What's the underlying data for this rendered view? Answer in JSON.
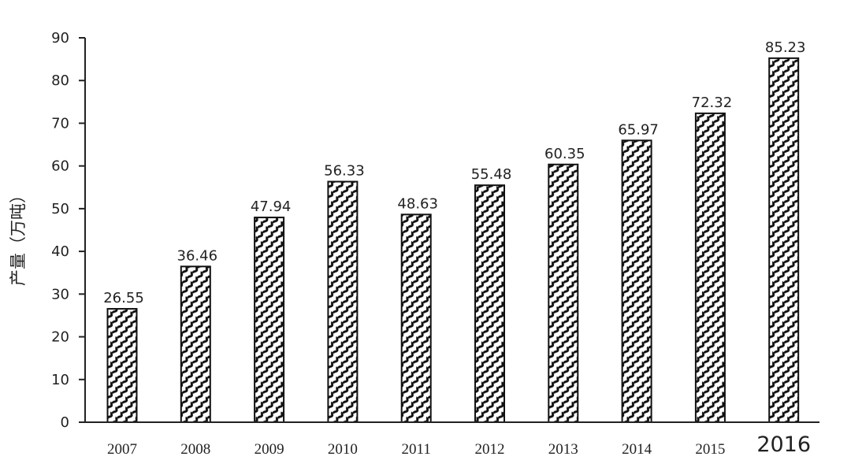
{
  "chart_data": {
    "type": "bar",
    "categories": [
      "2007",
      "2008",
      "2009",
      "2010",
      "2011",
      "2012",
      "2013",
      "2014",
      "2015",
      "2016"
    ],
    "values": [
      26.55,
      36.46,
      47.94,
      56.33,
      48.63,
      55.48,
      60.35,
      65.97,
      72.32,
      85.23
    ],
    "data_labels": [
      "26.55",
      "36.46",
      "47.94",
      "56.33",
      "48.63",
      "55.48",
      "60.35",
      "65.97",
      "72.32",
      "85.23"
    ],
    "ylabel": "产量（万吨）",
    "xlabel": "",
    "ylim": [
      0,
      90
    ],
    "yticks": [
      0,
      10,
      20,
      30,
      40,
      50,
      60,
      70,
      80,
      90
    ],
    "ytick_labels": [
      "0",
      "10",
      "20",
      "30",
      "40",
      "50",
      "60",
      "70",
      "80",
      "90"
    ],
    "grid": false,
    "legend": "none",
    "colors": {
      "bar_pattern_fg": "#111111",
      "bar_pattern_bg": "#ffffff",
      "axis": "#222222",
      "text": "#222222"
    },
    "pattern": "diagonal-wave-hatch"
  }
}
